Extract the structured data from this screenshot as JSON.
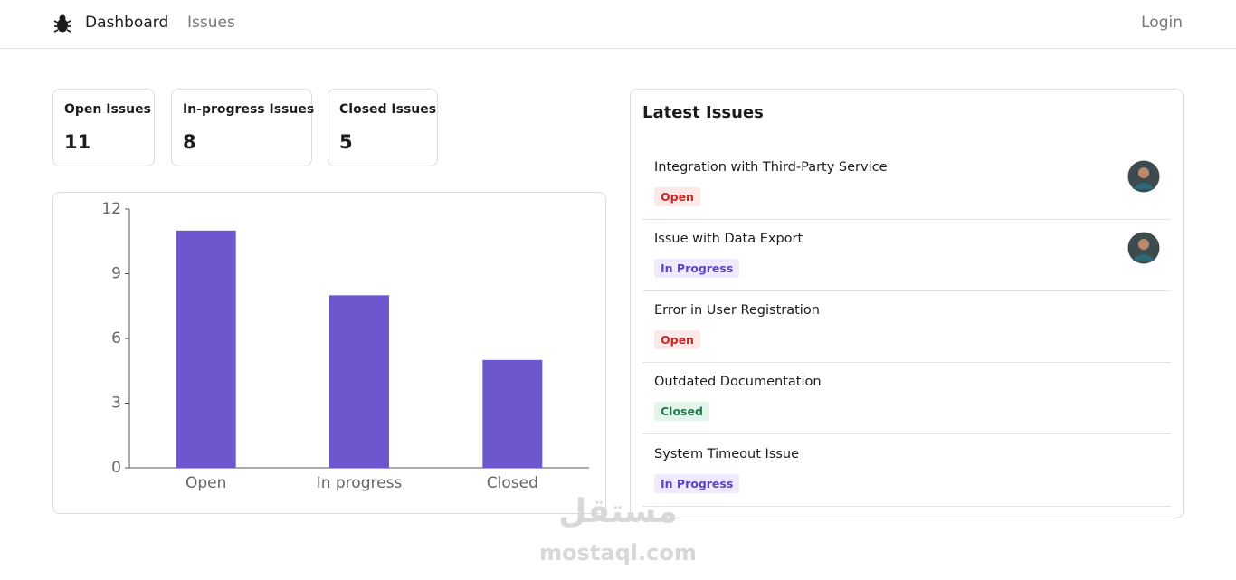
{
  "nav": {
    "brand": "Dashboard",
    "links": [
      "Issues"
    ],
    "login": "Login"
  },
  "summary": [
    {
      "label": "Open Issues",
      "count": 11
    },
    {
      "label": "In-progress Issues",
      "count": 8
    },
    {
      "label": "Closed Issues",
      "count": 5
    }
  ],
  "chart_data": {
    "type": "bar",
    "categories": [
      "Open",
      "In progress",
      "Closed"
    ],
    "values": [
      11,
      8,
      5
    ],
    "color": "#6e56cf",
    "ylim": [
      0,
      12
    ],
    "yticks": [
      0,
      3,
      6,
      9,
      12
    ]
  },
  "latest": {
    "title": "Latest Issues",
    "issues": [
      {
        "title": "Integration with Third-Party Service",
        "status": "Open",
        "status_color": "#c62828",
        "status_background": "#fde8e8"
      },
      {
        "title": "Issue with Data Export",
        "status": "In Progress",
        "status_color": "#5b45c4",
        "status_background": "#efeafd"
      },
      {
        "title": "Error in User Registration",
        "status": "Open",
        "status_color": "#c62828",
        "status_background": "#fde8e8"
      },
      {
        "title": "Outdated Documentation",
        "status": "Closed",
        "status_color": "#1f7a4c",
        "status_background": "#e3f5ea"
      },
      {
        "title": "System Timeout Issue",
        "status": "In Progress",
        "status_color": "#5b45c4",
        "status_background": "#efeafd"
      }
    ]
  },
  "watermark": [
    "مستقل",
    "mostaql.com"
  ]
}
